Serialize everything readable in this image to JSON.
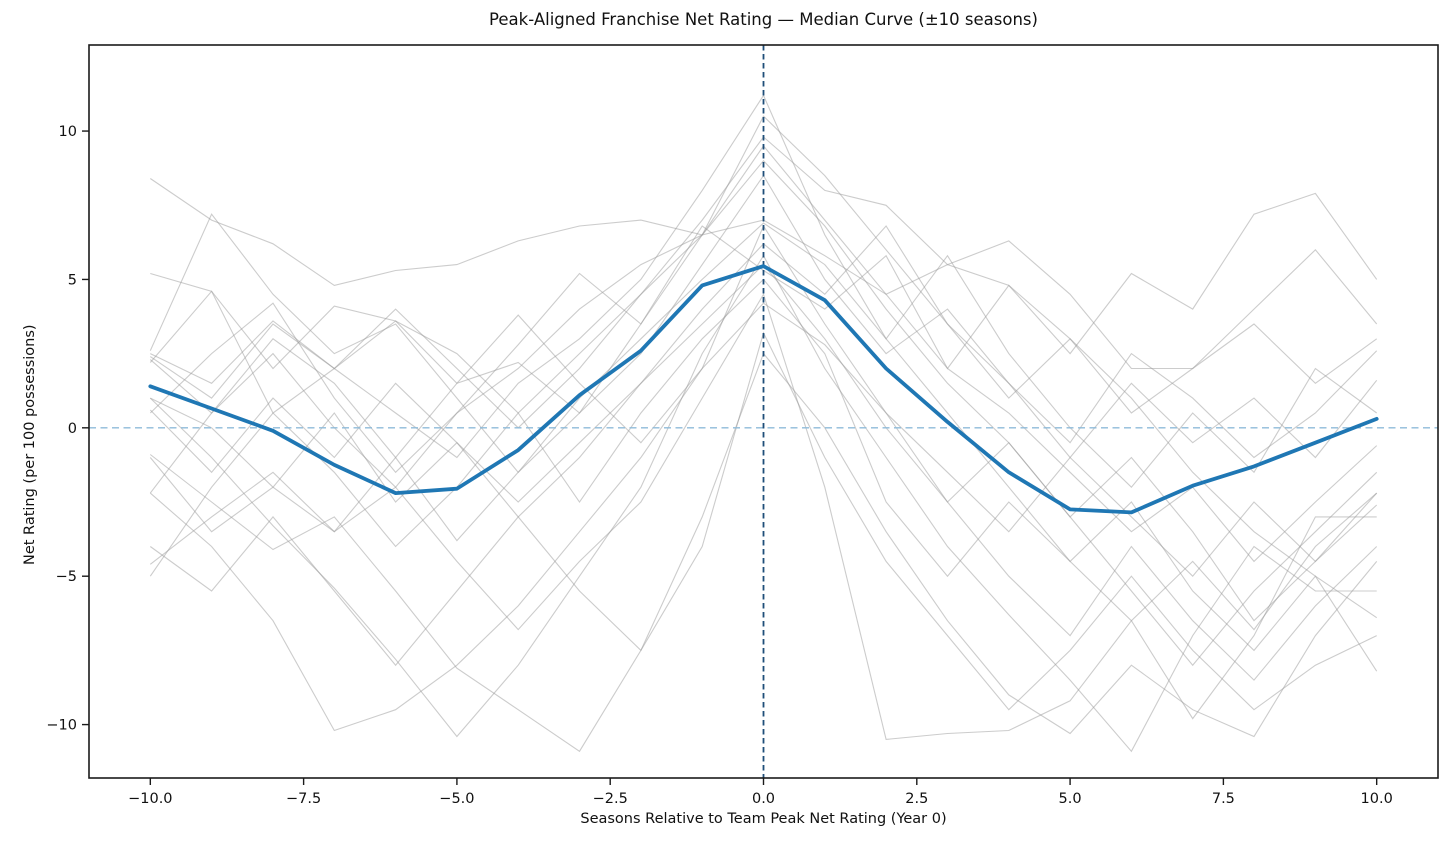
{
  "figure": {
    "title": "Peak-Aligned Franchise Net Rating — Median Curve (±10 seasons)"
  },
  "colors": {
    "median_line": "#1f77b4",
    "peak_vline": "#1f4e79",
    "zero_hline": "#8fbbd9",
    "franchise_line": "#9a9a9a",
    "axis": "#1a1a1a",
    "text": "#111111",
    "background": "#ffffff"
  },
  "chart_data": {
    "type": "line",
    "title": "Peak-Aligned Franchise Net Rating — Median Curve (±10 seasons)",
    "xlabel": "Seasons Relative to Team Peak Net Rating (Year 0)",
    "ylabel": "Net Rating (per 100 possessions)",
    "grid": false,
    "legend": "none",
    "xlim": [
      -11,
      11
    ],
    "ylim": [
      -11.8,
      12.9
    ],
    "x_ticks": [
      -10,
      -7.5,
      -5,
      -2.5,
      0,
      2.5,
      5,
      7.5,
      10
    ],
    "x_tick_labels": [
      "−10.0",
      "−7.5",
      "−5.0",
      "−2.5",
      "0.0",
      "2.5",
      "5.0",
      "7.5",
      "10.0"
    ],
    "y_ticks": [
      10,
      5,
      0,
      -5,
      -10
    ],
    "y_tick_labels": [
      "10",
      "5",
      "0",
      "−5",
      "−10"
    ],
    "reference_lines": {
      "vertical_x": 0,
      "horizontal_y": 0
    },
    "x": [
      -10,
      -9,
      -8,
      -7,
      -6,
      -5,
      -4,
      -3,
      -2,
      -1,
      0,
      1,
      2,
      3,
      4,
      5,
      6,
      7,
      8,
      9,
      10
    ],
    "median_series": {
      "name": "median-net-rating",
      "values": [
        1.4,
        0.65,
        -0.1,
        -1.25,
        -2.2,
        -2.05,
        -0.75,
        1.1,
        2.6,
        4.8,
        5.45,
        4.3,
        2.0,
        0.2,
        -1.5,
        -2.75,
        -2.85,
        -1.95,
        -1.3,
        -0.5,
        0.3
      ]
    },
    "background_series": [
      {
        "values": [
          8.4,
          7.0,
          6.2,
          4.8,
          5.3,
          5.5,
          6.3,
          6.8,
          7.0,
          6.5,
          7.0,
          5.8,
          4.5,
          5.5,
          4.8,
          3.0,
          1.0,
          -1.5,
          -3.5,
          -5.0,
          -6.4
        ]
      },
      {
        "values": [
          2.5,
          1.5,
          3.6,
          2.0,
          0.5,
          -1.0,
          1.5,
          3.0,
          5.0,
          8.0,
          11.2,
          6.5,
          3.0,
          0.5,
          -2.0,
          -4.5,
          -2.5,
          -5.5,
          -7.5,
          -5.0,
          -8.2
        ]
      },
      {
        "values": [
          5.2,
          4.6,
          2.0,
          4.1,
          3.6,
          1.5,
          2.2,
          0.5,
          3.5,
          6.8,
          5.3,
          4.0,
          5.8,
          2.0,
          0.5,
          -1.5,
          -3.5,
          -2.0,
          -4.5,
          -2.5,
          -0.6
        ]
      },
      {
        "values": [
          -2.2,
          -4.0,
          -6.5,
          -10.2,
          -9.5,
          -8.0,
          -6.0,
          -3.5,
          -1.0,
          2.0,
          6.8,
          3.5,
          0.5,
          -2.5,
          -5.0,
          -7.0,
          -4.0,
          -6.5,
          -8.5,
          -6.0,
          -4.0
        ]
      },
      {
        "values": [
          1.0,
          -1.0,
          -3.3,
          -5.4,
          -7.8,
          -10.4,
          -8.0,
          -5.0,
          -2.0,
          2.5,
          5.8,
          2.0,
          -1.0,
          -4.0,
          -6.3,
          -8.5,
          -10.9,
          -7.0,
          -4.0,
          -5.5,
          -5.5
        ]
      },
      {
        "values": [
          -0.9,
          -2.5,
          -4.1,
          -3.0,
          -5.5,
          -8.1,
          -9.5,
          -10.9,
          -7.5,
          -3.0,
          2.5,
          0.0,
          -3.5,
          -6.5,
          -9.0,
          -10.3,
          -8.0,
          -9.5,
          -10.4,
          -7.0,
          -4.5
        ]
      },
      {
        "values": [
          -4.6,
          -3.0,
          -1.5,
          -3.5,
          -2.0,
          -4.5,
          -6.8,
          -4.5,
          -2.5,
          1.0,
          4.5,
          -2.0,
          -10.5,
          -10.3,
          -10.2,
          -9.2,
          -6.5,
          -4.5,
          -6.8,
          -4.0,
          -2.2
        ]
      },
      {
        "values": [
          2.3,
          0.5,
          2.5,
          0.0,
          -2.0,
          0.5,
          2.8,
          5.2,
          3.5,
          6.5,
          9.5,
          7.0,
          4.5,
          2.0,
          4.8,
          2.5,
          5.2,
          4.0,
          7.2,
          7.9,
          5.0
        ]
      },
      {
        "values": [
          2.2,
          4.6,
          0.5,
          2.0,
          3.6,
          2.5,
          0.5,
          2.5,
          4.5,
          7.0,
          9.8,
          8.0,
          7.5,
          5.5,
          6.3,
          4.5,
          2.0,
          2.0,
          4.0,
          6.0,
          3.5
        ]
      },
      {
        "values": [
          -5.0,
          -2.0,
          0.5,
          -1.5,
          -4.0,
          -2.0,
          0.5,
          -2.5,
          0.5,
          3.0,
          5.0,
          2.5,
          -2.5,
          -5.0,
          -2.5,
          -4.5,
          -6.5,
          -9.8,
          -7.0,
          -3.0,
          -3.0
        ]
      },
      {
        "values": [
          2.6,
          7.2,
          4.5,
          2.5,
          3.5,
          1.0,
          -1.5,
          0.5,
          2.5,
          5.5,
          8.5,
          5.0,
          2.5,
          4.0,
          1.5,
          -0.5,
          2.5,
          1.0,
          -1.0,
          0.5,
          2.6
        ]
      },
      {
        "values": [
          1.0,
          0.0,
          -2.0,
          -3.5,
          -1.0,
          1.5,
          3.8,
          1.5,
          -0.5,
          2.0,
          4.2,
          2.8,
          0.5,
          -1.5,
          -3.5,
          -1.0,
          -3.0,
          -5.0,
          -2.5,
          -4.5,
          -2.2
        ]
      },
      {
        "values": [
          -4.0,
          -5.5,
          -3.0,
          -5.5,
          -8.0,
          -5.5,
          -3.0,
          -5.5,
          -7.5,
          -4.0,
          3.2,
          -1.0,
          -4.5,
          -7.0,
          -9.5,
          -7.5,
          -5.0,
          -7.5,
          -9.5,
          -8.0,
          -7.0
        ]
      },
      {
        "values": [
          0.6,
          -1.5,
          1.0,
          -1.0,
          1.5,
          -0.5,
          -2.5,
          -0.5,
          1.5,
          4.0,
          6.2,
          4.5,
          6.8,
          3.5,
          1.0,
          3.0,
          0.5,
          2.0,
          3.5,
          1.5,
          3.0
        ]
      },
      {
        "values": [
          -2.2,
          0.5,
          3.0,
          1.5,
          -1.0,
          -3.8,
          -1.5,
          1.0,
          3.0,
          5.0,
          6.9,
          5.5,
          3.0,
          5.8,
          2.5,
          0.0,
          -2.0,
          0.5,
          -1.5,
          2.0,
          0.5
        ]
      },
      {
        "values": [
          2.4,
          1.0,
          3.5,
          2.0,
          4.0,
          2.0,
          0.0,
          2.0,
          4.5,
          6.5,
          10.5,
          8.5,
          6.0,
          3.5,
          1.5,
          -1.0,
          1.5,
          -0.5,
          1.0,
          -1.0,
          1.6
        ]
      },
      {
        "values": [
          0.5,
          2.5,
          4.2,
          1.0,
          -1.5,
          0.5,
          2.0,
          4.0,
          5.5,
          6.5,
          9.0,
          6.8,
          4.0,
          1.5,
          -0.5,
          -3.0,
          -5.5,
          -8.0,
          -5.5,
          -3.5,
          -1.5
        ]
      },
      {
        "values": [
          -1.0,
          -3.5,
          -2.0,
          0.5,
          -2.5,
          -0.5,
          -3.0,
          -1.0,
          1.5,
          3.5,
          5.5,
          3.0,
          0.0,
          -2.5,
          -0.5,
          -3.0,
          -1.0,
          -3.5,
          -6.5,
          -4.5,
          -2.6
        ]
      }
    ]
  }
}
